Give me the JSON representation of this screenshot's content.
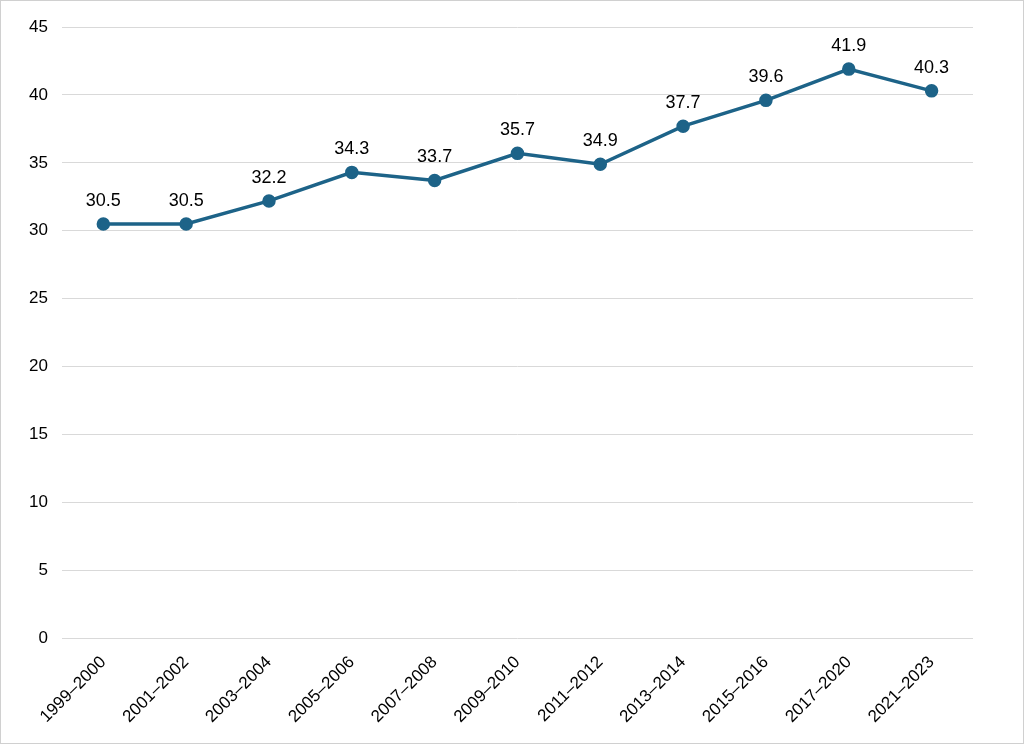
{
  "chart_data": {
    "type": "line",
    "categories": [
      "1999–2000",
      "2001–2002",
      "2003–2004",
      "2005–2006",
      "2007–2008",
      "2009–2010",
      "2011–2012",
      "2013–2014",
      "2015–2016",
      "2017–2020",
      "2021–2023"
    ],
    "values": [
      30.5,
      30.5,
      32.2,
      34.3,
      33.7,
      35.7,
      34.9,
      37.7,
      39.6,
      41.9,
      40.3
    ],
    "color": "#1d6388",
    "marker": "circle",
    "ylim": [
      0,
      45
    ],
    "yticks": [
      0,
      5,
      10,
      15,
      20,
      25,
      30,
      35,
      40,
      45
    ],
    "grid": true,
    "data_labels": true
  }
}
